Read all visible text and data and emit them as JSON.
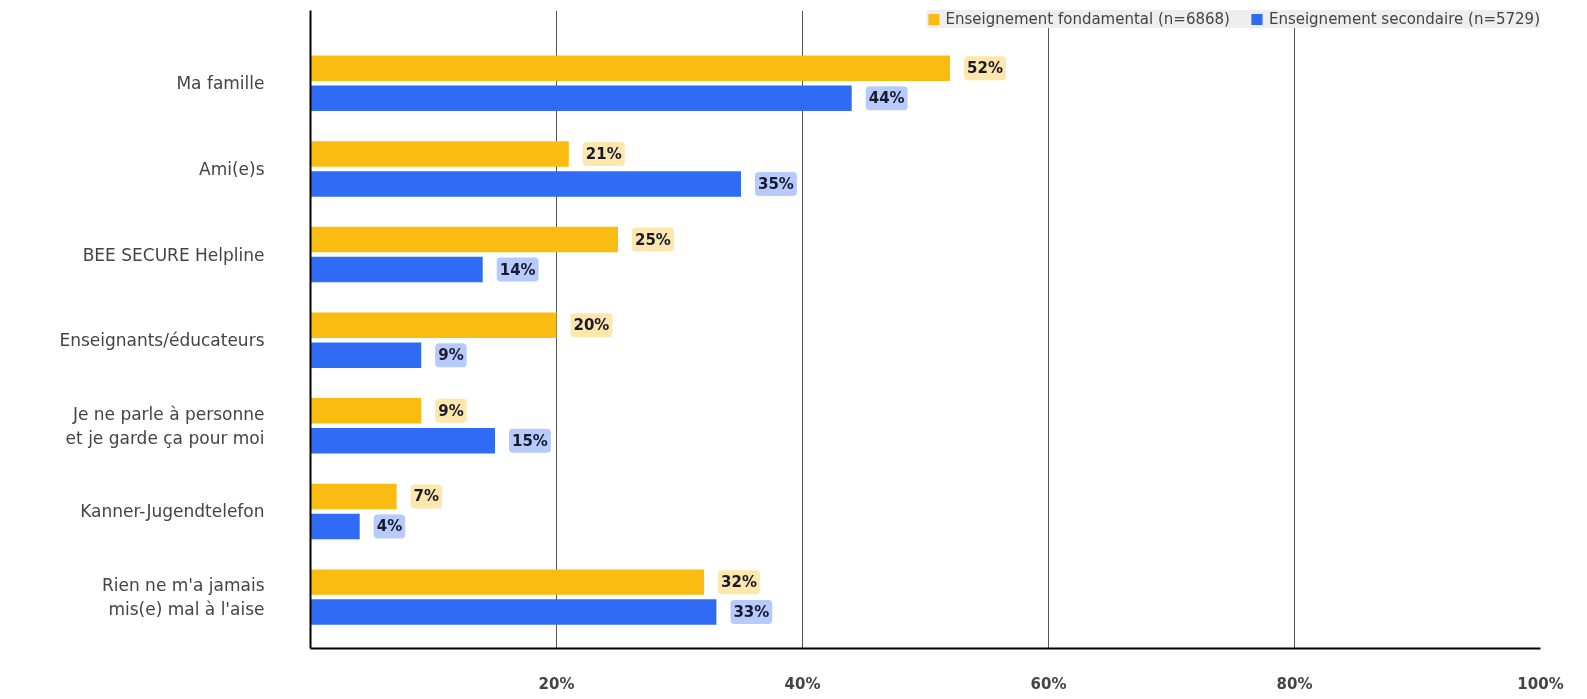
{
  "chart_data": {
    "type": "bar",
    "orientation": "horizontal",
    "categories": [
      "Ma famille",
      "Ami(e)s",
      "BEE SECURE Helpline",
      "Enseignants/éducateurs",
      "Je ne parle à personne et je garde ça pour moi",
      "Kanner-Jugendtelefon",
      "Rien ne m'a jamais mis(e) mal à l'aise"
    ],
    "series": [
      {
        "name": "Enseignement fondamental (n=6868)",
        "color": "#fbbc12",
        "values": [
          52,
          21,
          25,
          20,
          9,
          7,
          32
        ],
        "value_labels": [
          "52%",
          "21%",
          "25%",
          "20%",
          "9%",
          "7%",
          "32%"
        ]
      },
      {
        "name": "Enseignement secondaire (n=5729)",
        "color": "#2f6bf5",
        "values": [
          44,
          35,
          14,
          9,
          15,
          4,
          33
        ],
        "value_labels": [
          "44%",
          "35%",
          "14%",
          "9%",
          "15%",
          "4%",
          "33%"
        ]
      }
    ],
    "xlim": [
      0,
      100
    ],
    "xticks": [
      {
        "value": 20,
        "label": "20%"
      },
      {
        "value": 40,
        "label": "40%"
      },
      {
        "value": 60,
        "label": "60%"
      },
      {
        "value": 80,
        "label": "80%"
      },
      {
        "value": 100,
        "label": "100%"
      }
    ],
    "grid": "x",
    "legend": "top right"
  }
}
